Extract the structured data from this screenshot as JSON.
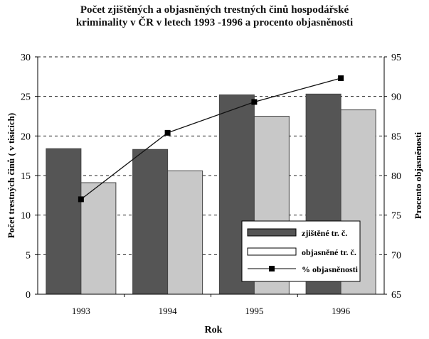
{
  "chart_data": {
    "type": "bar",
    "title": [
      "Počet zjištěných a objasněných trestných činů hospodářské",
      "kriminality  v ČR v letech 1993 -1996 a  procento objasněnosti"
    ],
    "xlabel": "Rok",
    "ylabel": "Počet trestných činů  ( v tisících)",
    "y2label": "Procento objasněnosti",
    "categories": [
      "1993",
      "1994",
      "1995",
      "1996"
    ],
    "ylim": [
      0,
      30
    ],
    "yticks": [
      0,
      5,
      10,
      15,
      20,
      25,
      30
    ],
    "y2lim": [
      65,
      95
    ],
    "y2ticks": [
      65,
      70,
      75,
      80,
      85,
      90,
      95
    ],
    "grid": "horizontal dashed",
    "legend_position": "bottom-right",
    "series": [
      {
        "name": "zjištěné tr. č.",
        "type": "bar",
        "axis": "left",
        "values": [
          18.4,
          18.3,
          25.2,
          25.3
        ],
        "color": "#555555"
      },
      {
        "name": "objasněné tr. č.",
        "type": "bar",
        "axis": "left",
        "values": [
          14.1,
          15.6,
          22.5,
          23.3
        ],
        "color": "#c8c8c8"
      },
      {
        "name": "% objasněnosti",
        "type": "line",
        "axis": "right",
        "values": [
          77.0,
          85.4,
          89.3,
          92.3
        ],
        "color": "#111111"
      }
    ]
  }
}
